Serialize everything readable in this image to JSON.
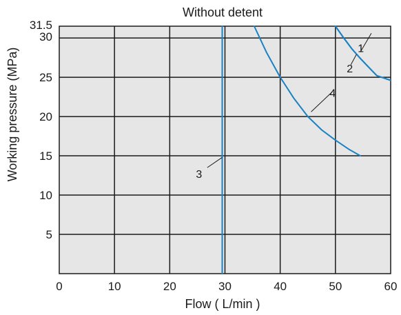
{
  "chart_data": {
    "type": "line",
    "title": "Without detent",
    "xlabel": "Flow ( L/min )",
    "ylabel": "Working pressure (MPa)",
    "xlim": [
      0,
      60
    ],
    "ylim": [
      0,
      31.5
    ],
    "xticks": [
      "0",
      "10",
      "20",
      "30",
      "40",
      "50",
      "60"
    ],
    "yticks": [
      "5",
      "10",
      "15",
      "20",
      "25",
      "30",
      "31.5"
    ],
    "grid": true,
    "background": "#e6e6e6",
    "series_color": "#1a82c4",
    "series": [
      {
        "name": "1",
        "x": [
          50,
          51.5,
          53,
          54.5,
          56,
          57.5,
          60
        ],
        "y": [
          31.5,
          30,
          28.6,
          27.4,
          26.3,
          25.2,
          24.6
        ]
      },
      {
        "name": "2",
        "x": [
          50,
          51.5,
          53,
          54.5,
          56,
          57.5,
          60
        ],
        "y": [
          31.5,
          30,
          28.6,
          27.4,
          26.3,
          25.2,
          24.6
        ]
      },
      {
        "name": "3",
        "x": [
          29.5,
          29.5
        ],
        "y": [
          0,
          31.5
        ]
      },
      {
        "name": "4",
        "x": [
          35.3,
          37.5,
          40,
          42.5,
          45,
          47.5,
          50,
          52.5,
          54.5
        ],
        "y": [
          31.5,
          28.2,
          25,
          22.3,
          20,
          18.3,
          17,
          15.8,
          15
        ]
      }
    ],
    "curve_labels": [
      {
        "text": "1",
        "series": "1",
        "at": [
          54.6,
          28.2
        ]
      },
      {
        "text": "2",
        "series": "2",
        "at": [
          52.6,
          25.6
        ]
      },
      {
        "text": "3",
        "series": "3",
        "at": [
          25.3,
          12.2
        ]
      },
      {
        "text": "4",
        "series": "4",
        "at": [
          49.5,
          22.5
        ]
      }
    ],
    "leaders": [
      {
        "series": "1",
        "from": [
          54.5,
          28.2
        ],
        "to": [
          56.5,
          30.6
        ]
      },
      {
        "series": "2",
        "from": [
          52.8,
          26.6
        ],
        "to": [
          53.8,
          27.9
        ]
      },
      {
        "series": "3",
        "from": [
          26.8,
          13.5
        ],
        "to": [
          29.5,
          14.8
        ]
      },
      {
        "series": "4",
        "from": [
          45.6,
          20.6
        ],
        "to": [
          49.5,
          23.2
        ]
      }
    ]
  }
}
